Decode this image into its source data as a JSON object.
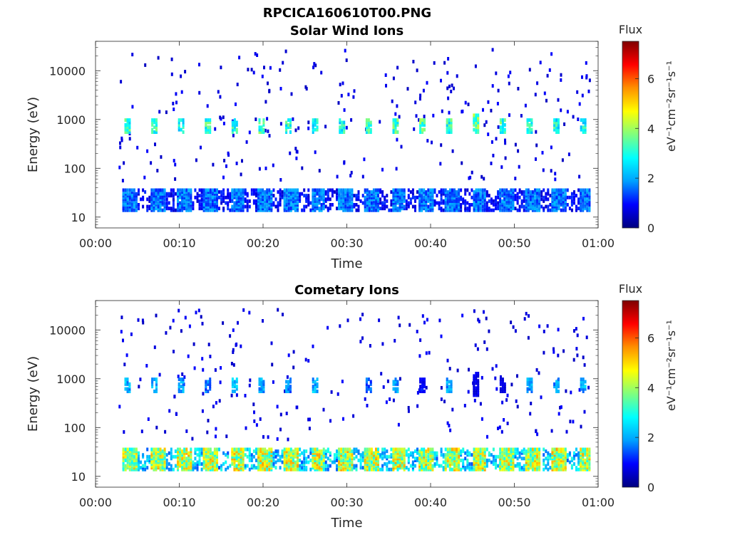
{
  "figure_title": "RPCICA160610T00.PNG",
  "chart_data": [
    {
      "type": "heatmap",
      "title": "Solar Wind Ions",
      "xlabel": "Time",
      "ylabel": "Energy (eV)",
      "xticks": [
        "00:00",
        "00:10",
        "00:20",
        "00:30",
        "00:40",
        "00:50",
        "01:00"
      ],
      "yticks": [
        "10",
        "100",
        "1000",
        "10000"
      ],
      "xlim_minutes": [
        0,
        60
      ],
      "ylim_eV": [
        6,
        40000
      ],
      "yscale": "log",
      "colorbar": {
        "title": "Flux",
        "label": "eV⁻¹cm⁻²sr⁻¹s⁻¹",
        "ticks": [
          "0",
          "2",
          "4",
          "6"
        ],
        "range": [
          0,
          7.5
        ],
        "colormap": "jet"
      },
      "bursts": [
        {
          "t": 3.8,
          "e_lo": 600,
          "e_hi": 1100,
          "flux": 3.2
        },
        {
          "t": 7.0,
          "e_lo": 600,
          "e_hi": 1100,
          "flux": 3.2
        },
        {
          "t": 10.2,
          "e_lo": 600,
          "e_hi": 1100,
          "flux": 3.0
        },
        {
          "t": 13.4,
          "e_lo": 600,
          "e_hi": 1100,
          "flux": 3.3
        },
        {
          "t": 16.6,
          "e_lo": 600,
          "e_hi": 1100,
          "flux": 3.2
        },
        {
          "t": 19.8,
          "e_lo": 600,
          "e_hi": 1100,
          "flux": 3.4
        },
        {
          "t": 23.0,
          "e_lo": 600,
          "e_hi": 1100,
          "flux": 3.2
        },
        {
          "t": 26.2,
          "e_lo": 600,
          "e_hi": 1100,
          "flux": 3.0
        },
        {
          "t": 29.4,
          "e_lo": 600,
          "e_hi": 1100,
          "flux": 3.0
        },
        {
          "t": 32.6,
          "e_lo": 600,
          "e_hi": 1100,
          "flux": 3.2
        },
        {
          "t": 35.8,
          "e_lo": 600,
          "e_hi": 1100,
          "flux": 3.4
        },
        {
          "t": 39.0,
          "e_lo": 600,
          "e_hi": 1100,
          "flux": 3.4
        },
        {
          "t": 42.2,
          "e_lo": 600,
          "e_hi": 1100,
          "flux": 3.2
        },
        {
          "t": 45.4,
          "e_lo": 600,
          "e_hi": 1400,
          "flux": 3.6
        },
        {
          "t": 48.6,
          "e_lo": 600,
          "e_hi": 1100,
          "flux": 3.4
        },
        {
          "t": 51.8,
          "e_lo": 600,
          "e_hi": 1100,
          "flux": 3.0
        },
        {
          "t": 55.0,
          "e_lo": 600,
          "e_hi": 1100,
          "flux": 3.0
        },
        {
          "t": 58.2,
          "e_lo": 600,
          "e_hi": 1100,
          "flux": 3.0
        }
      ],
      "low_band": {
        "e_lo": 15,
        "e_hi": 40,
        "flux": 1.8
      },
      "noise_flux": 0.8
    },
    {
      "type": "heatmap",
      "title": "Cometary Ions",
      "xlabel": "Time",
      "ylabel": "Energy (eV)",
      "xticks": [
        "00:00",
        "00:10",
        "00:20",
        "00:30",
        "00:40",
        "00:50",
        "01:00"
      ],
      "yticks": [
        "10",
        "100",
        "1000",
        "10000"
      ],
      "xlim_minutes": [
        0,
        60
      ],
      "ylim_eV": [
        6,
        40000
      ],
      "yscale": "log",
      "colorbar": {
        "title": "Flux",
        "label": "eV⁻¹cm⁻²sr⁻¹s⁻¹",
        "ticks": [
          "0",
          "2",
          "4",
          "6"
        ],
        "range": [
          0,
          7.5
        ],
        "colormap": "jet"
      },
      "bursts": [
        {
          "t": 3.8,
          "e_lo": 600,
          "e_hi": 1100,
          "flux": 2.2
        },
        {
          "t": 7.0,
          "e_lo": 600,
          "e_hi": 1100,
          "flux": 2.2
        },
        {
          "t": 10.2,
          "e_lo": 600,
          "e_hi": 1100,
          "flux": 2.0
        },
        {
          "t": 13.4,
          "e_lo": 600,
          "e_hi": 1100,
          "flux": 1.6
        },
        {
          "t": 16.6,
          "e_lo": 600,
          "e_hi": 1100,
          "flux": 2.2
        },
        {
          "t": 19.8,
          "e_lo": 600,
          "e_hi": 1100,
          "flux": 2.0
        },
        {
          "t": 23.0,
          "e_lo": 600,
          "e_hi": 1100,
          "flux": 1.8
        },
        {
          "t": 26.2,
          "e_lo": 600,
          "e_hi": 1100,
          "flux": 2.2
        },
        {
          "t": 32.6,
          "e_lo": 600,
          "e_hi": 1100,
          "flux": 1.5
        },
        {
          "t": 35.8,
          "e_lo": 600,
          "e_hi": 1100,
          "flux": 2.0
        },
        {
          "t": 39.0,
          "e_lo": 600,
          "e_hi": 1100,
          "flux": 1.0
        },
        {
          "t": 42.2,
          "e_lo": 600,
          "e_hi": 1100,
          "flux": 2.0
        },
        {
          "t": 45.4,
          "e_lo": 500,
          "e_hi": 1400,
          "flux": 0.8
        },
        {
          "t": 48.6,
          "e_lo": 600,
          "e_hi": 1100,
          "flux": 0.8
        },
        {
          "t": 51.8,
          "e_lo": 600,
          "e_hi": 1100,
          "flux": 2.0
        },
        {
          "t": 55.0,
          "e_lo": 600,
          "e_hi": 1100,
          "flux": 2.0
        },
        {
          "t": 58.2,
          "e_lo": 600,
          "e_hi": 1100,
          "flux": 2.2
        }
      ],
      "low_band": {
        "e_lo": 15,
        "e_hi": 40,
        "flux": 4.6
      },
      "noise_flux": 0.8
    }
  ],
  "colormap_stops": [
    "#00007f",
    "#0000ff",
    "#00a0ff",
    "#00ffff",
    "#7fff7f",
    "#ffff00",
    "#ff9000",
    "#ff0000",
    "#7f0000"
  ]
}
